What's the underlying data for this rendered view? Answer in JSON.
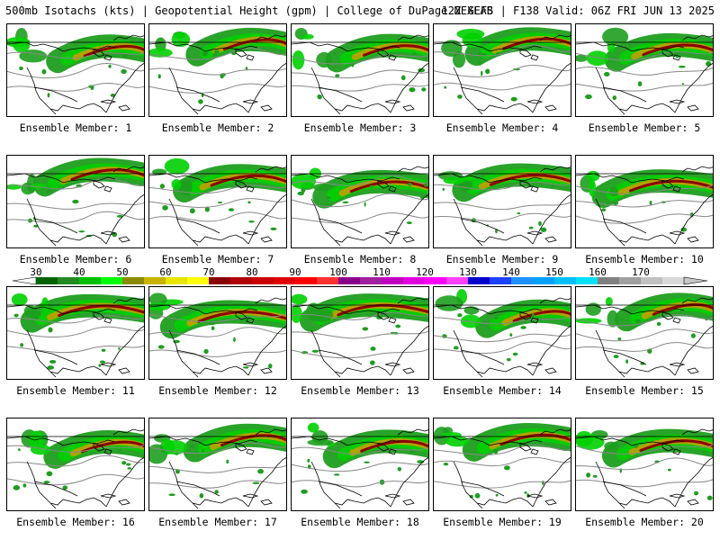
{
  "header": {
    "title": "500mb Isotachs (kts) | Geopotential Height (gpm) | College of DuPage NEXLAB",
    "run": "12Z GEFS | F138 Valid: 06Z FRI JUN 13 2025"
  },
  "members": [
    {
      "label": "Ensemble Member: 1"
    },
    {
      "label": "Ensemble Member: 2"
    },
    {
      "label": "Ensemble Member: 3"
    },
    {
      "label": "Ensemble Member: 4"
    },
    {
      "label": "Ensemble Member: 5"
    },
    {
      "label": "Ensemble Member: 6"
    },
    {
      "label": "Ensemble Member: 7"
    },
    {
      "label": "Ensemble Member: 8"
    },
    {
      "label": "Ensemble Member: 9"
    },
    {
      "label": "Ensemble Member: 10"
    },
    {
      "label": "Ensemble Member: 11"
    },
    {
      "label": "Ensemble Member: 12"
    },
    {
      "label": "Ensemble Member: 13"
    },
    {
      "label": "Ensemble Member: 14"
    },
    {
      "label": "Ensemble Member: 15"
    },
    {
      "label": "Ensemble Member: 16"
    },
    {
      "label": "Ensemble Member: 17"
    },
    {
      "label": "Ensemble Member: 18"
    },
    {
      "label": "Ensemble Member: 19"
    },
    {
      "label": "Ensemble Member: 20"
    }
  ],
  "legend": {
    "ticks": [
      "30",
      "40",
      "50",
      "60",
      "70",
      "80",
      "90",
      "100",
      "110",
      "120",
      "130",
      "140",
      "150",
      "160",
      "170"
    ],
    "colors": [
      "#006400",
      "#228b22",
      "#00c000",
      "#00ff00",
      "#8b8b00",
      "#c8b400",
      "#e6e600",
      "#ffff00",
      "#8b0000",
      "#b00000",
      "#cc0000",
      "#e00000",
      "#ff0000",
      "#ff3030",
      "#8b008b",
      "#a020a0",
      "#c000c0",
      "#e000e0",
      "#ff00ff",
      "#ff40ff",
      "#0000cd",
      "#1e40ff",
      "#1e90ff",
      "#00a0ff",
      "#00bfff",
      "#00e0ff",
      "#808080",
      "#a0a0a0",
      "#c0c0c0",
      "#d8d8d8"
    ]
  },
  "map_colors": {
    "jet_low": "#1e9e1e",
    "jet_mid": "#00d000",
    "jet_high": "#b8a000",
    "jet_max": "#8b0000",
    "height_contour": "#888888",
    "coast": "#000000"
  }
}
